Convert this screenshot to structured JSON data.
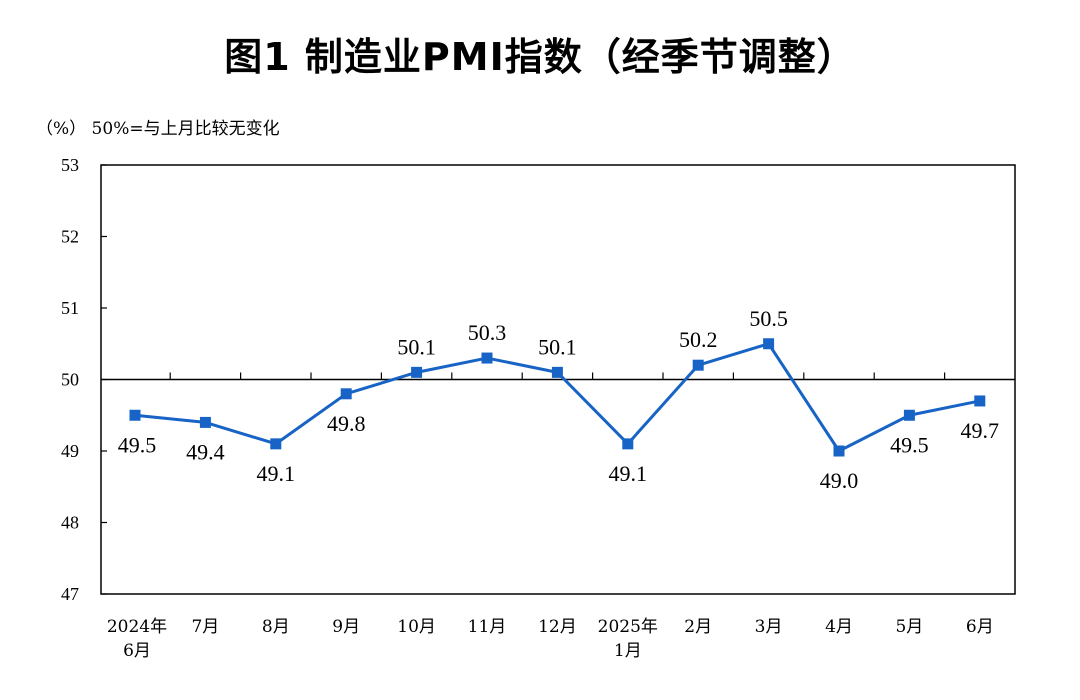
{
  "title": "图1  制造业PMI指数（经季节调整）",
  "unit_note": "（%）  50%=与上月比较无变化",
  "chart_data": {
    "type": "line",
    "title": "图1  制造业PMI指数（经季节调整）",
    "ylabel": "（%）",
    "xlabel": "",
    "ylim": [
      47,
      53
    ],
    "yticks": [
      "47",
      "48",
      "49",
      "50",
      "51",
      "52",
      "53"
    ],
    "reference_line": 50,
    "categories": [
      [
        "2024年",
        "6月"
      ],
      [
        "7月"
      ],
      [
        "8月"
      ],
      [
        "9月"
      ],
      [
        "10月"
      ],
      [
        "11月"
      ],
      [
        "12月"
      ],
      [
        "2025年",
        "1月"
      ],
      [
        "2月"
      ],
      [
        "3月"
      ],
      [
        "4月"
      ],
      [
        "5月"
      ],
      [
        "6月"
      ]
    ],
    "series": [
      {
        "name": "制造业PMI",
        "color": "#1763C6",
        "values": [
          49.5,
          49.4,
          49.1,
          49.8,
          50.1,
          50.3,
          50.1,
          49.1,
          50.2,
          50.5,
          49.0,
          49.5,
          49.7
        ],
        "labels": [
          "49.5",
          "49.4",
          "49.1",
          "49.8",
          "50.1",
          "50.3",
          "50.1",
          "49.1",
          "50.2",
          "50.5",
          "49.0",
          "49.5",
          "49.7"
        ],
        "label_positions": [
          "below",
          "below",
          "below",
          "below",
          "above",
          "above",
          "above",
          "below",
          "above",
          "above",
          "below",
          "below",
          "below"
        ]
      }
    ]
  }
}
